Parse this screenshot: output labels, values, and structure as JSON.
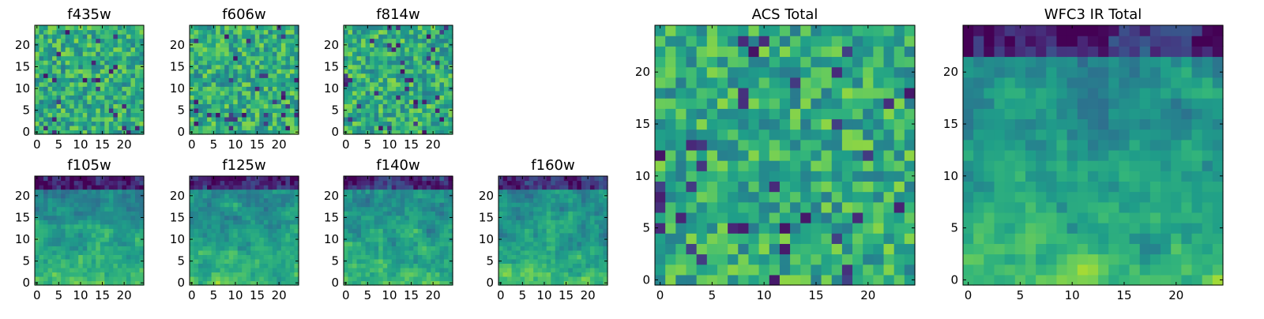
{
  "figure": {
    "colormap": "viridis"
  },
  "chart_data": [
    {
      "type": "heatmap",
      "title": "f435w",
      "xticks": [
        "0",
        "5",
        "10",
        "15",
        "20"
      ],
      "yticks": [
        "0",
        "5",
        "10",
        "15",
        "20"
      ],
      "xlim": [
        0,
        25
      ],
      "ylim": [
        0,
        25
      ],
      "grid": false,
      "style": "noise"
    },
    {
      "type": "heatmap",
      "title": "f606w",
      "xticks": [
        "0",
        "5",
        "10",
        "15",
        "20"
      ],
      "yticks": [
        "0",
        "5",
        "10",
        "15",
        "20"
      ],
      "xlim": [
        0,
        25
      ],
      "ylim": [
        0,
        25
      ],
      "grid": false,
      "style": "noise"
    },
    {
      "type": "heatmap",
      "title": "f814w",
      "xticks": [
        "0",
        "5",
        "10",
        "15",
        "20"
      ],
      "yticks": [
        "0",
        "5",
        "10",
        "15",
        "20"
      ],
      "xlim": [
        0,
        25
      ],
      "ylim": [
        0,
        25
      ],
      "grid": false,
      "style": "noise"
    },
    {
      "type": "heatmap",
      "title": "f105w",
      "xticks": [
        "0",
        "5",
        "10",
        "15",
        "20"
      ],
      "yticks": [
        "0",
        "5",
        "10",
        "15",
        "20"
      ],
      "xlim": [
        0,
        25
      ],
      "ylim": [
        0,
        25
      ],
      "grid": false,
      "style": "smooth"
    },
    {
      "type": "heatmap",
      "title": "f125w",
      "xticks": [
        "0",
        "5",
        "10",
        "15",
        "20"
      ],
      "yticks": [
        "0",
        "5",
        "10",
        "15",
        "20"
      ],
      "xlim": [
        0,
        25
      ],
      "ylim": [
        0,
        25
      ],
      "grid": false,
      "style": "smooth"
    },
    {
      "type": "heatmap",
      "title": "f140w",
      "xticks": [
        "0",
        "5",
        "10",
        "15",
        "20"
      ],
      "yticks": [
        "0",
        "5",
        "10",
        "15",
        "20"
      ],
      "xlim": [
        0,
        25
      ],
      "ylim": [
        0,
        25
      ],
      "grid": false,
      "style": "smooth"
    },
    {
      "type": "heatmap",
      "title": "f160w",
      "xticks": [
        "0",
        "5",
        "10",
        "15",
        "20"
      ],
      "yticks": [
        "0",
        "5",
        "10",
        "15",
        "20"
      ],
      "xlim": [
        0,
        25
      ],
      "ylim": [
        0,
        25
      ],
      "grid": false,
      "style": "smooth"
    },
    {
      "type": "heatmap",
      "title": "ACS Total",
      "xticks": [
        "0",
        "5",
        "10",
        "15",
        "20"
      ],
      "yticks": [
        "0",
        "5",
        "10",
        "15",
        "20"
      ],
      "xlim": [
        0,
        25
      ],
      "ylim": [
        0,
        25
      ],
      "grid": false,
      "style": "noise"
    },
    {
      "type": "heatmap",
      "title": "WFC3 IR Total",
      "xticks": [
        "0",
        "5",
        "10",
        "15",
        "20"
      ],
      "yticks": [
        "0",
        "5",
        "10",
        "15",
        "20"
      ],
      "xlim": [
        0,
        25
      ],
      "ylim": [
        0,
        25
      ],
      "grid": false,
      "style": "smooth"
    }
  ]
}
